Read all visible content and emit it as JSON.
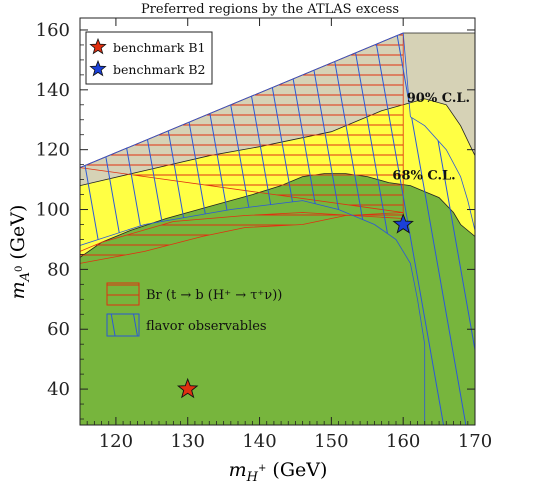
{
  "chart_data": {
    "type": "contour",
    "title": "Preferred regions by the ATLAS excess",
    "xlabel": {
      "main": "m",
      "sub": "H",
      "sup": "+",
      "unit": " (GeV)"
    },
    "ylabel": {
      "main": "m",
      "sub": "A",
      "subsup": "0",
      "unit": " (GeV)"
    },
    "xlim": [
      115,
      170
    ],
    "ylim": [
      28,
      164
    ],
    "xticks": [
      120,
      130,
      140,
      150,
      160,
      170
    ],
    "yticks": [
      40,
      60,
      80,
      100,
      120,
      140,
      160
    ],
    "colors": {
      "excluded": "#d6d2b6",
      "cl90": "#ffff44",
      "cl68": "#77b53d",
      "br_hatch": "#e03010",
      "flavor_hatch": "#2a58d8",
      "boundary": "#222222"
    },
    "regions": {
      "excluded": [
        [
          115,
          114
        ],
        [
          160,
          159
        ],
        [
          170,
          159
        ],
        [
          170,
          28
        ],
        [
          115,
          28
        ]
      ],
      "cl90": [
        [
          115,
          108
        ],
        [
          124,
          113
        ],
        [
          133,
          118
        ],
        [
          140,
          121
        ],
        [
          146,
          124
        ],
        [
          150,
          126
        ],
        [
          154,
          130
        ],
        [
          157,
          133
        ],
        [
          160,
          135
        ],
        [
          163,
          137
        ],
        [
          166,
          135
        ],
        [
          168,
          128
        ],
        [
          170,
          118
        ],
        [
          170,
          28
        ],
        [
          115,
          28
        ]
      ],
      "cl68": [
        [
          115,
          84
        ],
        [
          118,
          89
        ],
        [
          122,
          93
        ],
        [
          127,
          97
        ],
        [
          133,
          101
        ],
        [
          139,
          105
        ],
        [
          143,
          108
        ],
        [
          146,
          111
        ],
        [
          149,
          112
        ],
        [
          152,
          112
        ],
        [
          155,
          111
        ],
        [
          158,
          109
        ],
        [
          161,
          108
        ],
        [
          163,
          106
        ],
        [
          165,
          104
        ],
        [
          167,
          99
        ],
        [
          168,
          95
        ],
        [
          170,
          91
        ],
        [
          170,
          28
        ],
        [
          115,
          28
        ]
      ]
    },
    "hatched_regions": {
      "br": [
        [
          115,
          114
        ],
        [
          160,
          159
        ],
        [
          160,
          97
        ],
        [
          146,
          99
        ],
        [
          138,
          98
        ],
        [
          128,
          96
        ],
        [
          118,
          89
        ],
        [
          115,
          86
        ],
        [
          115,
          82
        ],
        [
          124,
          86
        ],
        [
          132,
          91
        ],
        [
          138,
          94
        ],
        [
          146,
          95
        ],
        [
          152,
          98
        ],
        [
          160,
          99
        ]
      ],
      "flavor": [
        [
          115,
          114
        ],
        [
          160,
          159
        ],
        [
          161,
          131
        ],
        [
          163,
          128
        ],
        [
          166,
          120
        ],
        [
          168,
          111
        ],
        [
          169,
          103
        ],
        [
          170,
          93
        ],
        [
          170,
          28
        ],
        [
          163,
          28
        ],
        [
          163,
          40
        ],
        [
          163,
          55
        ],
        [
          162,
          70
        ],
        [
          161,
          82
        ],
        [
          159,
          90
        ],
        [
          156,
          95
        ],
        [
          151,
          100
        ],
        [
          146,
          103
        ],
        [
          136,
          100
        ],
        [
          124,
          95
        ],
        [
          115,
          88
        ]
      ]
    },
    "series": [
      {
        "name": "benchmark B1",
        "x": 130,
        "y": 40,
        "marker": "star",
        "color": "#e03010"
      },
      {
        "name": "benchmark B2",
        "x": 160,
        "y": 95,
        "marker": "star",
        "color": "#1a40d8"
      }
    ],
    "annotations": [
      {
        "text": "90% C.L.",
        "x": 160.5,
        "y": 136
      },
      {
        "text": "68% C.L.",
        "x": 158.5,
        "y": 110
      }
    ],
    "legend_position": "top-left",
    "inner_legend": [
      {
        "label": "Br (t → b (H⁺ → τ⁺ν))",
        "hatch": "br"
      },
      {
        "label": "flavor observables",
        "hatch": "flavor"
      }
    ]
  }
}
